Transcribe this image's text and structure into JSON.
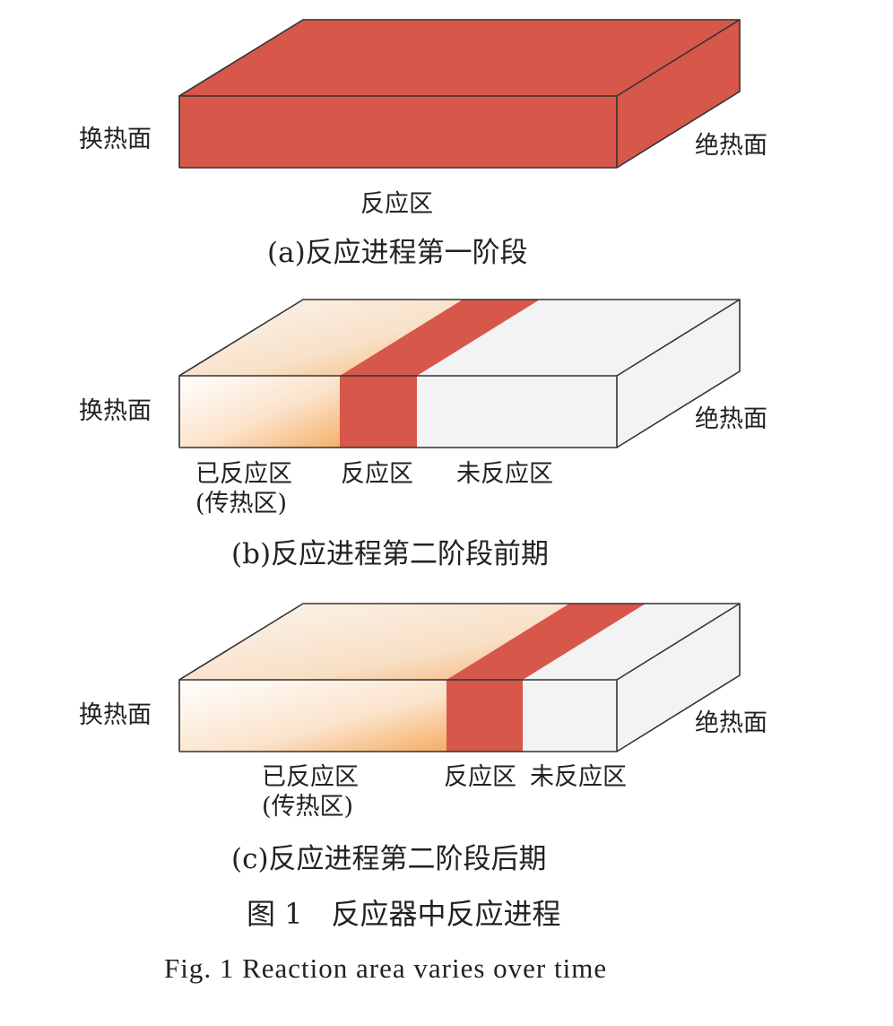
{
  "colors": {
    "reaction": "#d7574a",
    "reacted": "#f5b06a",
    "unreacted": "#f2f3f3",
    "edge": "#333333"
  },
  "panels": [
    {
      "id": "a",
      "left_label": "换热面",
      "right_label": "绝热面",
      "zone_labels": [
        "反应区"
      ],
      "caption": "(a)反应进程第一阶段",
      "reaction_start": 0,
      "reaction_end": 1
    },
    {
      "id": "b",
      "left_label": "换热面",
      "right_label": "绝热面",
      "zone_labels": [
        "已反应区",
        "(传热区)",
        "反应区",
        "未反应区"
      ],
      "caption": "(b)反应进程第二阶段前期",
      "reaction_start": 0.363,
      "reaction_end": 0.5
    },
    {
      "id": "c",
      "left_label": "换热面",
      "right_label": "绝热面",
      "zone_labels": [
        "已反应区",
        "(传热区)",
        "反应区",
        "未反应区"
      ],
      "caption": "(c)反应进程第二阶段后期",
      "reaction_start": 0.597,
      "reaction_end": 0.734
    }
  ],
  "figure_title": "图 1　反应器中反应进程",
  "figure_title_en": "Fig. 1  Reaction area varies over time"
}
